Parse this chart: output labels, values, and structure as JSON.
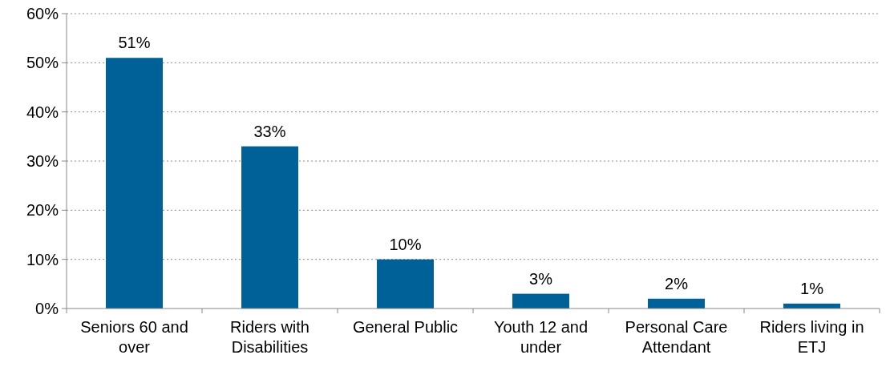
{
  "chart_data": {
    "type": "bar",
    "categories": [
      "Seniors 60 and over",
      "Riders with Disabilities",
      "General Public",
      "Youth 12 and under",
      "Personal Care Attendant",
      "Riders living in ETJ"
    ],
    "values": [
      51,
      33,
      10,
      3,
      2,
      1
    ],
    "value_labels": [
      "51%",
      "33%",
      "10%",
      "3%",
      "2%",
      "1%"
    ],
    "color": "#006198",
    "ylim": [
      0,
      60
    ],
    "yticks": [
      {
        "value": 0,
        "label": "0%"
      },
      {
        "value": 10,
        "label": "10%"
      },
      {
        "value": 20,
        "label": "20%"
      },
      {
        "value": 30,
        "label": "30%"
      },
      {
        "value": 40,
        "label": "40%"
      },
      {
        "value": 50,
        "label": "50%"
      },
      {
        "value": 60,
        "label": "60%"
      }
    ],
    "grid": "y"
  }
}
